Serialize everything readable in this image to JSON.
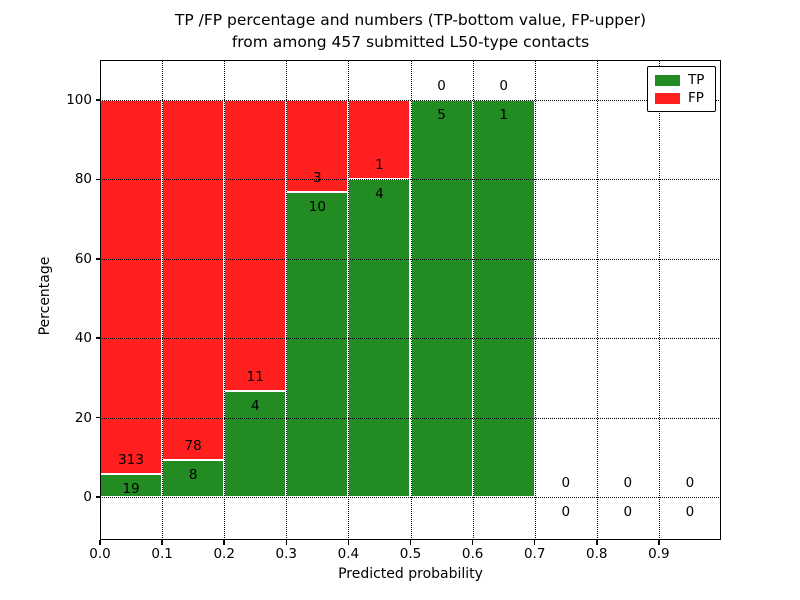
{
  "chart_data": {
    "type": "bar",
    "subtype": "stacked-percentage-histogram",
    "title_lines": [
      "TP /FP percentage and numbers (TP-bottom value, FP-upper)",
      "from among 457 submitted L50-type contacts"
    ],
    "xlabel": "Predicted probability",
    "ylabel": "Percentage",
    "xlim": [
      0.0,
      1.0
    ],
    "ylim": [
      -11,
      110
    ],
    "grid": "dotted",
    "x_ticks": [
      {
        "value": 0.0,
        "label": "0.0"
      },
      {
        "value": 0.1,
        "label": "0.1"
      },
      {
        "value": 0.2,
        "label": "0.2"
      },
      {
        "value": 0.3,
        "label": "0.3"
      },
      {
        "value": 0.4,
        "label": "0.4"
      },
      {
        "value": 0.5,
        "label": "0.5"
      },
      {
        "value": 0.6,
        "label": "0.6"
      },
      {
        "value": 0.7,
        "label": "0.7"
      },
      {
        "value": 0.8,
        "label": "0.8"
      },
      {
        "value": 0.9,
        "label": "0.9"
      }
    ],
    "y_ticks": [
      {
        "value": 0,
        "label": "0"
      },
      {
        "value": 20,
        "label": "20"
      },
      {
        "value": 40,
        "label": "40"
      },
      {
        "value": 60,
        "label": "60"
      },
      {
        "value": 80,
        "label": "80"
      },
      {
        "value": 100,
        "label": "100"
      }
    ],
    "categories": [
      "0.0-0.1",
      "0.1-0.2",
      "0.2-0.3",
      "0.3-0.4",
      "0.4-0.5",
      "0.5-0.6",
      "0.6-0.7",
      "0.7-0.8",
      "0.8-0.9",
      "0.9-1.0"
    ],
    "series": [
      {
        "name": "TP",
        "values": [
          19,
          8,
          4,
          10,
          4,
          5,
          1,
          0,
          0,
          0
        ]
      },
      {
        "name": "FP",
        "values": [
          313,
          78,
          11,
          3,
          1,
          0,
          0,
          0,
          0,
          0
        ]
      }
    ],
    "bins": [
      {
        "x_start": 0.0,
        "x_end": 0.1,
        "tp": 19,
        "fp": 313
      },
      {
        "x_start": 0.1,
        "x_end": 0.2,
        "tp": 8,
        "fp": 78
      },
      {
        "x_start": 0.2,
        "x_end": 0.3,
        "tp": 4,
        "fp": 11
      },
      {
        "x_start": 0.3,
        "x_end": 0.4,
        "tp": 10,
        "fp": 3
      },
      {
        "x_start": 0.4,
        "x_end": 0.5,
        "tp": 4,
        "fp": 1
      },
      {
        "x_start": 0.5,
        "x_end": 0.6,
        "tp": 5,
        "fp": 0
      },
      {
        "x_start": 0.6,
        "x_end": 0.7,
        "tp": 1,
        "fp": 0
      },
      {
        "x_start": 0.7,
        "x_end": 0.8,
        "tp": 0,
        "fp": 0
      },
      {
        "x_start": 0.8,
        "x_end": 0.9,
        "tp": 0,
        "fp": 0
      },
      {
        "x_start": 0.9,
        "x_end": 1.0,
        "tp": 0,
        "fp": 0
      }
    ],
    "colors": {
      "tp": "#228b22",
      "fp": "#ff1f1f",
      "grid": "#000000",
      "text": "#000000",
      "background": "#ffffff"
    },
    "legend": {
      "position": "upper right",
      "entries": [
        {
          "label": "TP",
          "color_key": "tp"
        },
        {
          "label": "FP",
          "color_key": "fp"
        }
      ]
    }
  }
}
